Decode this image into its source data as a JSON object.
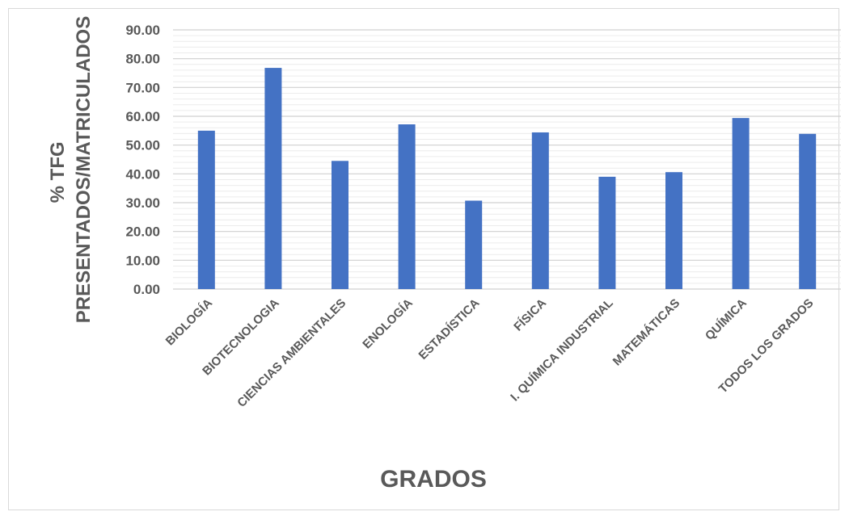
{
  "chart_data": {
    "type": "bar",
    "categories": [
      "BIOLOGÍA",
      "BIOTECNOLOGIA",
      "CIENCIAS AMBIENTALES",
      "ENOLOGÍA",
      "ESTADÍSTICA",
      "FÍSICA",
      "I. QUÍMICA INDUSTRIAL",
      "MATEMÁTICAS",
      "QUÍMICA",
      "TODOS LOS GRADOS"
    ],
    "values": [
      55.0,
      76.8,
      44.5,
      57.2,
      30.7,
      54.4,
      39.0,
      40.6,
      59.4,
      53.9
    ],
    "xlabel": "GRADOS",
    "ylabel_lines": [
      "% TFG",
      "PRESENTADOS/MATRICULADOS"
    ],
    "ylim": [
      0,
      90
    ],
    "ytick_step": 10,
    "ytick_labels": [
      "0.00",
      "10.00",
      "20.00",
      "30.00",
      "40.00",
      "50.00",
      "60.00",
      "70.00",
      "80.00",
      "90.00"
    ],
    "grid": true,
    "legend": "none",
    "bar_color": "#4472c4",
    "grid_color": "#d9d9d9"
  }
}
